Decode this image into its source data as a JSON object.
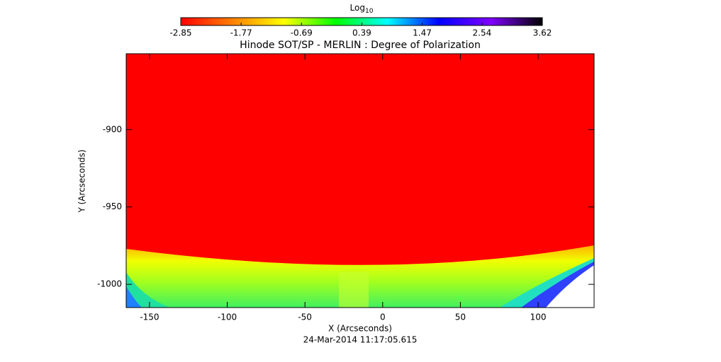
{
  "chart_data": {
    "type": "heatmap",
    "title": "Hinode SOT/SP - MERLIN : Degree of Polarization",
    "x_label": "X (Arcseconds)",
    "y_label": "Y (Arcseconds)",
    "date": "24-Mar-2014 11:17:05.615",
    "colorbar_label": "Log",
    "colorbar_label_sub": "10",
    "colorbar_ticks": [
      -2.85,
      -1.77,
      -0.69,
      0.39,
      1.47,
      2.54,
      3.62
    ],
    "clim": [
      -2.85,
      3.62
    ],
    "colormap": [
      "#ff0000",
      "#ff8000",
      "#ffff00",
      "#00ff00",
      "#00ffff",
      "#0000ff",
      "#8000ff",
      "#000000"
    ],
    "xlim": [
      -165,
      136
    ],
    "xticks": [
      -150,
      -100,
      -50,
      0,
      50,
      100
    ],
    "ylim": [
      -1015,
      -851
    ],
    "yticks": [
      -1000,
      -950,
      -900
    ]
  }
}
